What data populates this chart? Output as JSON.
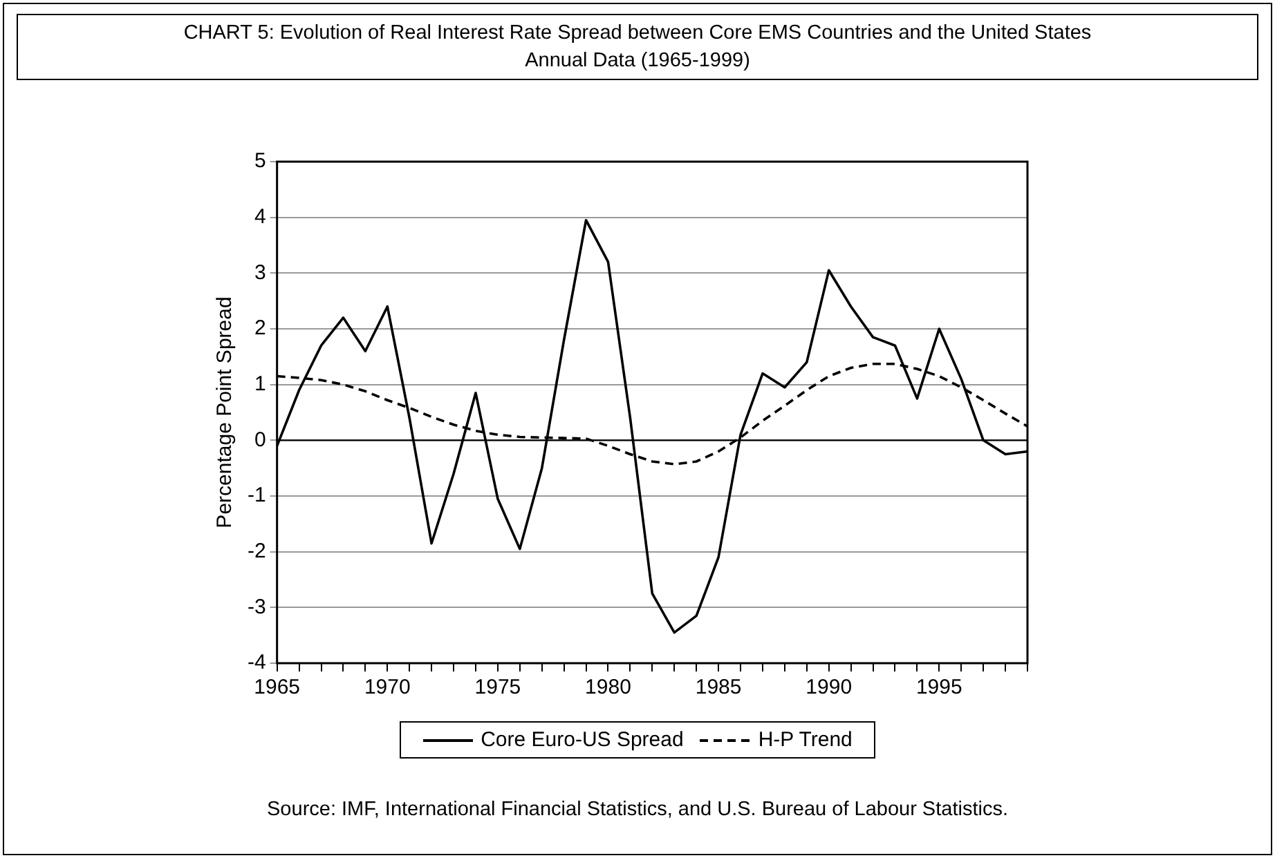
{
  "chart_data": {
    "type": "line",
    "title": "CHART 5: Evolution of Real Interest Rate Spread between Core EMS Countries and the United States",
    "subtitle": "Annual Data (1965-1999)",
    "ylabel": "Percentage Point Spread",
    "x": [
      1965,
      1966,
      1967,
      1968,
      1969,
      1970,
      1971,
      1972,
      1973,
      1974,
      1975,
      1976,
      1977,
      1978,
      1979,
      1980,
      1981,
      1982,
      1983,
      1984,
      1985,
      1986,
      1987,
      1988,
      1989,
      1990,
      1991,
      1992,
      1993,
      1994,
      1995,
      1996,
      1997,
      1998,
      1999
    ],
    "series": [
      {
        "name": "Core Euro-US Spread",
        "color": "#000000",
        "line_style": "solid",
        "values": [
          -0.1,
          0.9,
          1.7,
          2.2,
          1.6,
          2.4,
          0.4,
          -1.85,
          -0.6,
          0.85,
          -1.05,
          -1.95,
          -0.5,
          1.8,
          3.95,
          3.2,
          0.4,
          -2.75,
          -3.45,
          -3.15,
          -2.1,
          0.1,
          1.2,
          0.95,
          1.4,
          3.05,
          2.4,
          1.85,
          1.7,
          0.75,
          2.0,
          1.1,
          0.0,
          -0.25,
          -0.2
        ]
      },
      {
        "name": "H-P Trend",
        "color": "#000000",
        "line_style": "dashed",
        "values": [
          1.15,
          1.12,
          1.08,
          1.0,
          0.88,
          0.72,
          0.58,
          0.42,
          0.28,
          0.17,
          0.1,
          0.06,
          0.05,
          0.04,
          0.03,
          -0.1,
          -0.25,
          -0.38,
          -0.43,
          -0.38,
          -0.2,
          0.05,
          0.35,
          0.62,
          0.9,
          1.15,
          1.3,
          1.37,
          1.37,
          1.28,
          1.15,
          0.95,
          0.72,
          0.48,
          0.25
        ]
      }
    ],
    "xlim": [
      1965,
      1999
    ],
    "xticks": [
      1965,
      {
        "value": 1966,
        "label": null
      },
      {
        "value": 1967,
        "label": null
      },
      {
        "value": 1968,
        "label": null
      },
      {
        "value": 1969,
        "label": null
      },
      1970,
      {
        "value": 1971,
        "label": null
      },
      {
        "value": 1972,
        "label": null
      },
      {
        "value": 1973,
        "label": null
      },
      {
        "value": 1974,
        "label": null
      },
      1975,
      {
        "value": 1976,
        "label": null
      },
      {
        "value": 1977,
        "label": null
      },
      {
        "value": 1978,
        "label": null
      },
      {
        "value": 1979,
        "label": null
      },
      1980,
      {
        "value": 1981,
        "label": null
      },
      {
        "value": 1982,
        "label": null
      },
      {
        "value": 1983,
        "label": null
      },
      {
        "value": 1984,
        "label": null
      },
      1985,
      {
        "value": 1986,
        "label": null
      },
      {
        "value": 1987,
        "label": null
      },
      {
        "value": 1988,
        "label": null
      },
      {
        "value": 1989,
        "label": null
      },
      1990,
      {
        "value": 1991,
        "label": null
      },
      {
        "value": 1992,
        "label": null
      },
      {
        "value": 1993,
        "label": null
      },
      {
        "value": 1994,
        "label": null
      },
      1995,
      {
        "value": 1996,
        "label": null
      },
      {
        "value": 1997,
        "label": null
      },
      {
        "value": 1998,
        "label": null
      },
      {
        "value": 1999,
        "label": null
      }
    ],
    "ylim": [
      -4,
      5
    ],
    "yticks": [
      -4,
      -3,
      -2,
      -1,
      0,
      1,
      2,
      3,
      4,
      5
    ],
    "ref_lines": [
      {
        "axis": "y",
        "value": 0,
        "color": "#000000",
        "line_style": "solid"
      }
    ],
    "grid": "y",
    "legend": "bottom",
    "marker": "none",
    "annotations": [
      "Source: IMF, International Financial Statistics, and U.S. Bureau of Labour Statistics."
    ]
  }
}
